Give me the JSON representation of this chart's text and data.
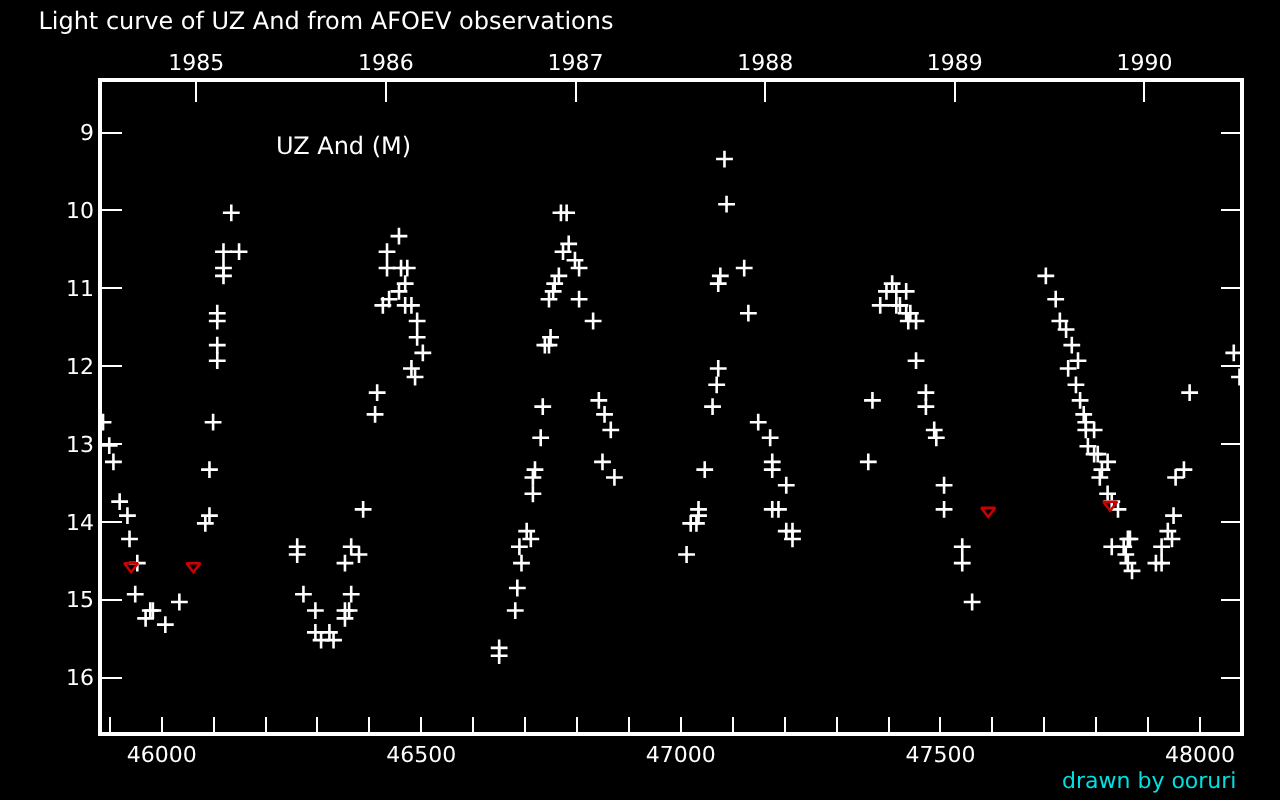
{
  "chart_data": {
    "type": "scatter",
    "title": "Light curve of UZ And from AFOEV observations",
    "annotations": [
      "UZ And (M)",
      "drawn by ooruri"
    ],
    "xlim": [
      45885,
      48077
    ],
    "xticks": [
      {
        "value": 45900,
        "label": null
      },
      46000,
      {
        "value": 46100,
        "label": null
      },
      {
        "value": 46200,
        "label": null
      },
      {
        "value": 46300,
        "label": null
      },
      {
        "value": 46400,
        "label": null
      },
      46500,
      {
        "value": 46600,
        "label": null
      },
      {
        "value": 46700,
        "label": null
      },
      {
        "value": 46800,
        "label": null
      },
      {
        "value": 46900,
        "label": null
      },
      47000,
      {
        "value": 47100,
        "label": null
      },
      {
        "value": 47200,
        "label": null
      },
      {
        "value": 47300,
        "label": null
      },
      {
        "value": 47400,
        "label": null
      },
      47500,
      {
        "value": 47600,
        "label": null
      },
      {
        "value": 47700,
        "label": null
      },
      {
        "value": 47800,
        "label": null
      },
      {
        "value": 47900,
        "label": null
      },
      48000
    ],
    "x2lim": [
      1984.503,
      1990.504
    ],
    "x2ticks": [
      1985,
      1986,
      1987,
      1988,
      1989,
      1990
    ],
    "ylim": [
      16.7,
      8.35
    ],
    "yticks": [
      9,
      10,
      11,
      12,
      13,
      14,
      15,
      16
    ],
    "grid": false,
    "series": [
      {
        "color": "#ffffff",
        "marker": "cross",
        "x": [
          45887,
          45899,
          45907,
          45919,
          45934,
          45938,
          45953,
          45949,
          45978,
          45983,
          45969,
          46007,
          46034,
          46084,
          46092,
          46092,
          46099,
          46107,
          46107,
          46107,
          46107,
          46119,
          46119,
          46119,
          46134,
          46149,
          46261,
          46261,
          46273,
          46296,
          46296,
          46307,
          46323,
          46331,
          46353,
          46361,
          46353,
          46353,
          46365,
          46365,
          46380,
          46388,
          46411,
          46415,
          46426,
          46438,
          46434,
          46434,
          46457,
          46461,
          46473,
          46457,
          46469,
          46469,
          46481,
          46492,
          46492,
          46503,
          46481,
          46488,
          46650,
          46650,
          46681,
          46685,
          46693,
          46689,
          46703,
          46711,
          46715,
          46715,
          46719,
          46730,
          46734,
          46738,
          46746,
          46749,
          46746,
          46754,
          46757,
          46765,
          46773,
          46784,
          46769,
          46780,
          46796,
          46804,
          46804,
          46831,
          46842,
          46853,
          46865,
          46849,
          46872,
          47011,
          47019,
          47030,
          47034,
          47034,
          47046,
          47061,
          47069,
          47072,
          47072,
          47076,
          47084,
          47088,
          47122,
          47130,
          47149,
          47172,
          47176,
          47176,
          47176,
          47188,
          47203,
          47203,
          47215,
          47215,
          47361,
          47369,
          47384,
          47396,
          47407,
          47415,
          47434,
          47415,
          47422,
          47434,
          47442,
          47438,
          47453,
          47453,
          47472,
          47472,
          47488,
          47492,
          47507,
          47507,
          47542,
          47542,
          47561,
          47703,
          47722,
          47730,
          47742,
          47753,
          47746,
          47765,
          47761,
          47769,
          47776,
          47780,
          47780,
          47796,
          47784,
          47796,
          47803,
          47822,
          47811,
          47807,
          47822,
          47830,
          47842,
          47830,
          47853,
          47861,
          47865,
          47857,
          47861,
          47869,
          47915,
          47926,
          47926,
          47938,
          47946,
          47949,
          47953,
          47969,
          47980,
          48065,
          48076
        ],
        "values": [
          12.72,
          13.02,
          13.23,
          13.74,
          13.92,
          14.22,
          14.53,
          14.93,
          15.14,
          15.14,
          15.24,
          15.32,
          15.03,
          14.02,
          13.92,
          13.33,
          12.72,
          11.93,
          11.73,
          11.42,
          11.32,
          10.84,
          10.74,
          10.53,
          10.03,
          10.53,
          14.32,
          14.42,
          14.93,
          15.14,
          15.42,
          15.52,
          15.42,
          15.52,
          15.14,
          15.14,
          15.24,
          14.53,
          14.32,
          14.93,
          14.42,
          13.84,
          12.62,
          12.34,
          11.22,
          11.14,
          10.53,
          10.74,
          10.33,
          10.74,
          10.74,
          11.04,
          10.94,
          11.22,
          11.22,
          11.42,
          11.63,
          11.83,
          12.03,
          12.14,
          15.62,
          15.72,
          15.14,
          14.85,
          14.53,
          14.32,
          14.12,
          14.22,
          13.64,
          13.43,
          13.33,
          12.92,
          12.52,
          11.73,
          11.73,
          11.63,
          11.14,
          11.04,
          10.94,
          10.84,
          10.53,
          10.43,
          10.03,
          10.03,
          10.64,
          10.74,
          11.14,
          11.42,
          12.44,
          12.62,
          12.82,
          13.23,
          13.43,
          14.42,
          14.02,
          14.02,
          13.92,
          13.84,
          13.33,
          12.52,
          12.24,
          12.03,
          10.94,
          10.84,
          9.34,
          9.92,
          10.74,
          11.32,
          12.72,
          12.92,
          13.23,
          13.33,
          13.84,
          13.84,
          13.53,
          14.12,
          14.12,
          14.22,
          13.23,
          12.44,
          11.22,
          11.04,
          10.94,
          11.04,
          11.04,
          11.22,
          11.22,
          11.32,
          11.32,
          11.42,
          11.42,
          11.93,
          12.34,
          12.52,
          12.82,
          12.92,
          13.53,
          13.84,
          14.32,
          14.53,
          15.03,
          10.84,
          11.14,
          11.42,
          11.53,
          11.73,
          12.03,
          11.93,
          12.24,
          12.44,
          12.62,
          12.72,
          12.82,
          12.82,
          13.03,
          13.13,
          13.13,
          13.23,
          13.33,
          13.43,
          13.64,
          13.74,
          13.84,
          14.32,
          14.32,
          14.22,
          14.22,
          14.42,
          14.53,
          14.63,
          14.53,
          14.53,
          14.32,
          14.12,
          14.22,
          13.92,
          13.43,
          13.33,
          12.34,
          11.83,
          12.14
        ]
      },
      {
        "color": "#cc0000",
        "marker": "triangle",
        "x": [
          45941,
          46061,
          47592,
          47827
        ],
        "values": [
          14.57,
          14.57,
          13.86,
          13.78
        ]
      }
    ]
  }
}
